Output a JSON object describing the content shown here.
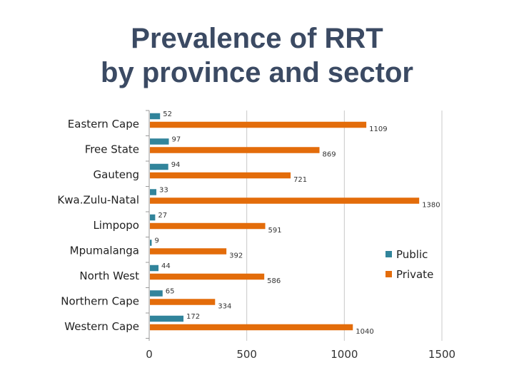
{
  "header": {
    "title_line1": "Prevalence of RRT",
    "title_line2": "by province and sector"
  },
  "chart_data": {
    "type": "bar",
    "orientation": "horizontal",
    "title": "Prevalence of RRT by province and sector",
    "categories": [
      "Eastern Cape",
      "Free State",
      "Gauteng",
      "Kwa.Zulu-Natal",
      "Limpopo",
      "Mpumalanga",
      "North West",
      "Northern Cape",
      "Western Cape"
    ],
    "series": [
      {
        "name": "Public",
        "color": "#31849b",
        "values": [
          52,
          97,
          94,
          33,
          27,
          9,
          44,
          65,
          172
        ]
      },
      {
        "name": "Private",
        "color": "#e36c0a",
        "values": [
          1109,
          869,
          721,
          1380,
          591,
          392,
          586,
          334,
          1040
        ]
      }
    ],
    "xlim": [
      0,
      1500
    ],
    "xticks": [
      "0",
      "500",
      "1000",
      "1500"
    ],
    "xtick_values": [
      0,
      500,
      1000,
      1500
    ],
    "grid": true,
    "legend": "right"
  }
}
